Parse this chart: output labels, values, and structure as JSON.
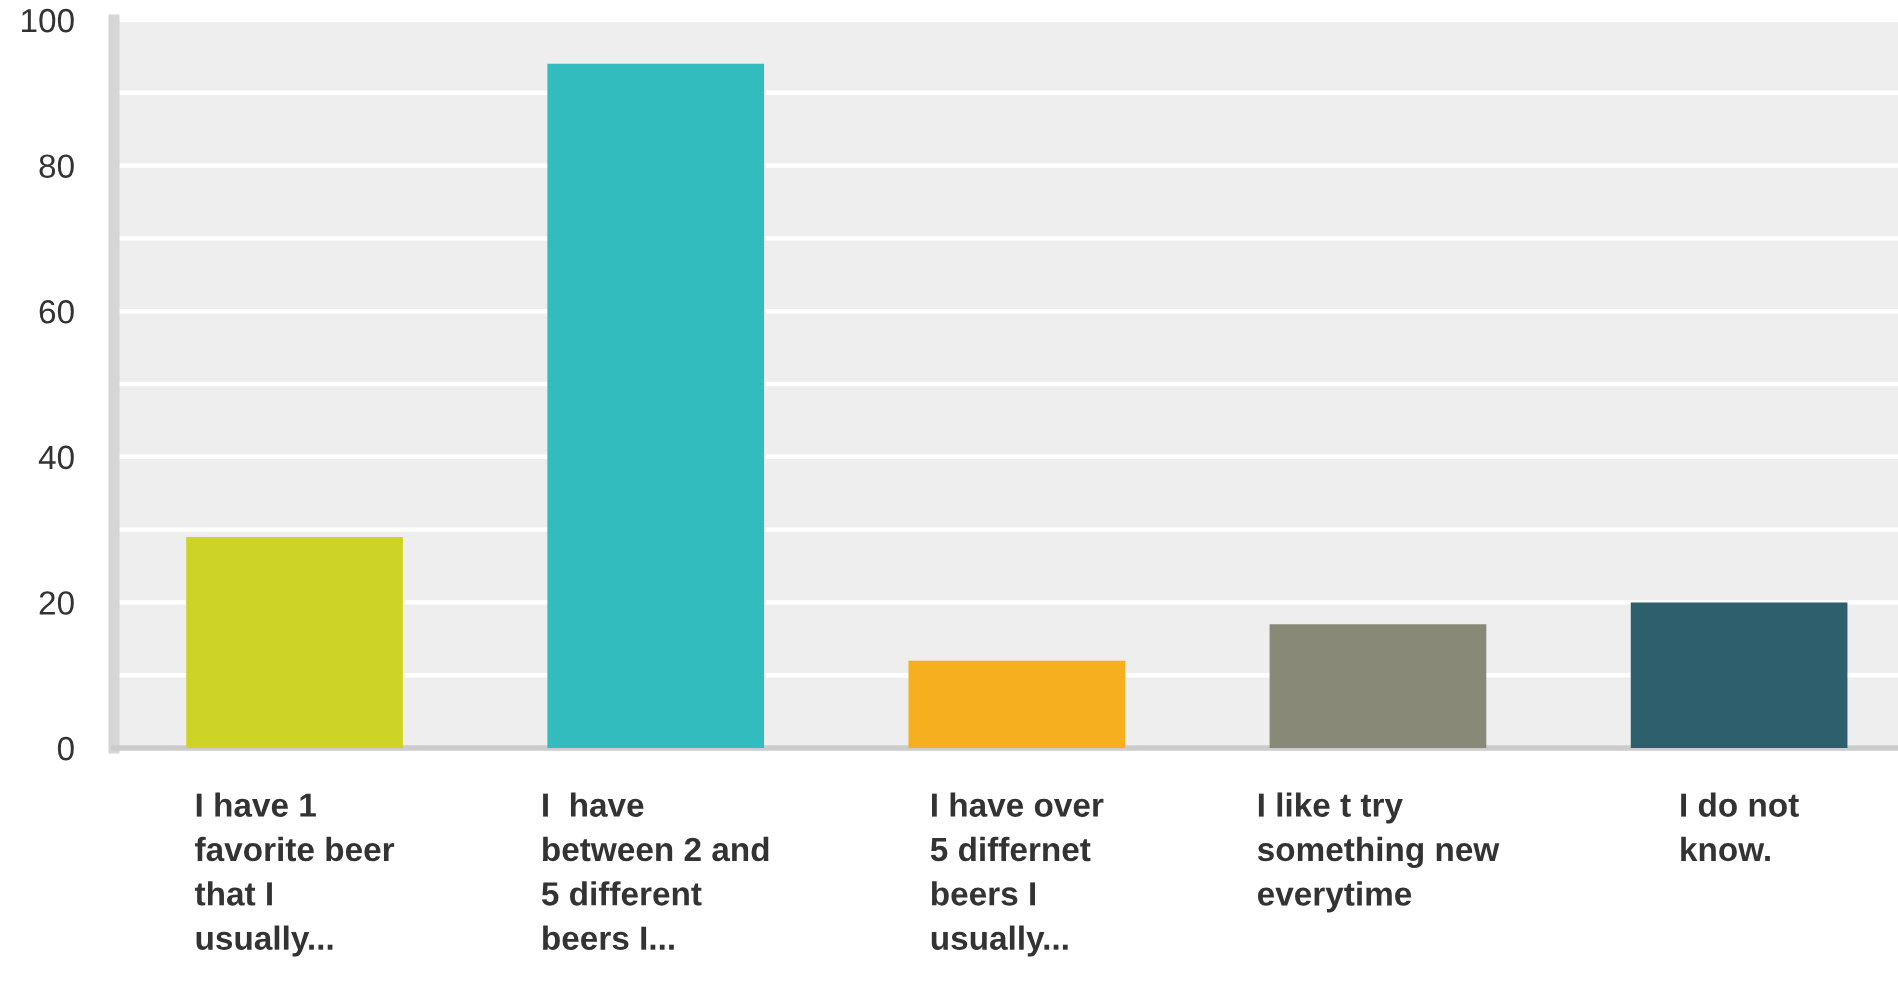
{
  "chart_data": {
    "type": "bar",
    "categories": [
      "I have 1\nfavorite beer\nthat I\nusually...",
      "I  have\nbetween 2 and\n5 different\nbeers I...",
      "I have over\n5 differnet\nbeers I\nusually...",
      "I like t try\nsomething new\neverytime",
      "I do not\nknow."
    ],
    "values": [
      29,
      94,
      12,
      17,
      20
    ],
    "colors": [
      "#ced426",
      "#33bcbd",
      "#f5af1f",
      "#898978",
      "#2d5f6c"
    ],
    "ylim": [
      0,
      100
    ],
    "yticks": [
      0,
      {
        "value": 10,
        "label": null
      },
      20,
      {
        "value": 30,
        "label": null
      },
      40,
      {
        "value": 50,
        "label": null
      },
      60,
      {
        "value": 70,
        "label": null
      },
      80,
      {
        "value": 90,
        "label": null
      },
      100
    ],
    "grid": "y",
    "legend": false
  }
}
